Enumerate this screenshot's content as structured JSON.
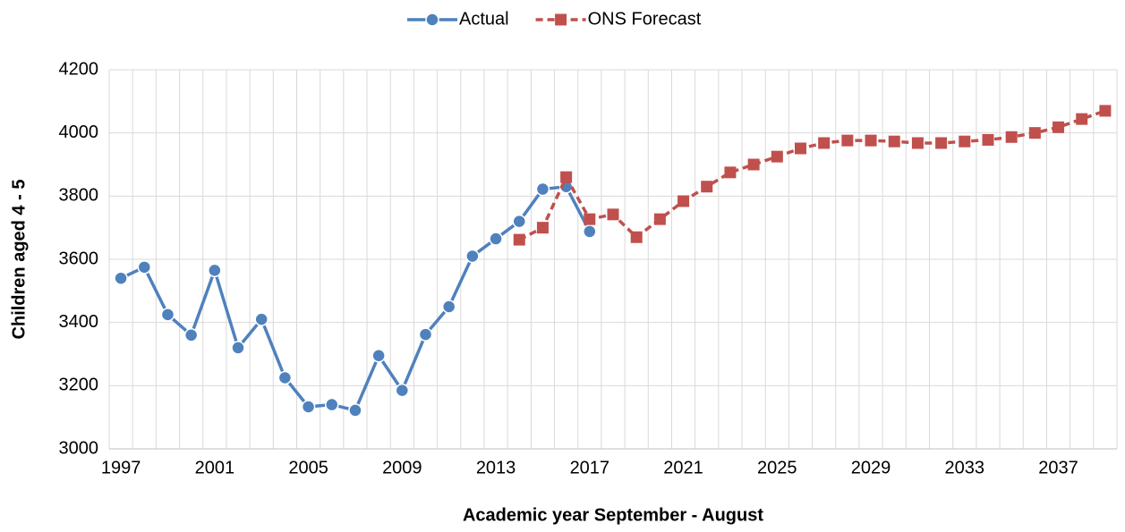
{
  "chart_data": {
    "type": "line",
    "x_label": "Academic year September - August",
    "y_label": "Children aged 4 - 5",
    "categories": [
      "1997",
      null,
      null,
      null,
      "2001",
      null,
      null,
      null,
      "2005",
      null,
      null,
      null,
      "2009",
      null,
      null,
      null,
      "2013",
      null,
      null,
      null,
      "2017",
      null,
      null,
      null,
      "2021",
      null,
      null,
      null,
      "2025",
      null,
      null,
      null,
      "2029",
      null,
      null,
      null,
      "2033",
      null,
      null,
      null,
      "2037",
      null,
      null
    ],
    "series": [
      {
        "name": "Actual",
        "color": "#4f81bd",
        "marker": "circle",
        "dashed": false,
        "values": [
          3540,
          3575,
          3425,
          3360,
          3565,
          3320,
          3410,
          3225,
          3133,
          3140,
          3122,
          3295,
          3185,
          3362,
          3450,
          3610,
          3665,
          3720,
          3822,
          3830,
          3688,
          null,
          null,
          null,
          null,
          null,
          null,
          null,
          null,
          null,
          null,
          null,
          null,
          null,
          null,
          null,
          null,
          null,
          null,
          null,
          null,
          null,
          null
        ]
      },
      {
        "name": "ONS Forecast",
        "color": "#c0504d",
        "marker": "square",
        "dashed": true,
        "values": [
          null,
          null,
          null,
          null,
          null,
          null,
          null,
          null,
          null,
          null,
          null,
          null,
          null,
          null,
          null,
          null,
          null,
          3662,
          3700,
          3860,
          3727,
          3742,
          3670,
          3727,
          3784,
          3830,
          3875,
          3900,
          3925,
          3951,
          3968,
          3976,
          3976,
          3973,
          3968,
          3968,
          3973,
          3978,
          3987,
          4000,
          4018,
          4044,
          4070
        ]
      }
    ],
    "ylim": [
      3000,
      4200
    ],
    "yticks": [
      3000,
      3200,
      3400,
      3600,
      3800,
      4000,
      4200
    ],
    "grid": true,
    "legend": "top"
  }
}
